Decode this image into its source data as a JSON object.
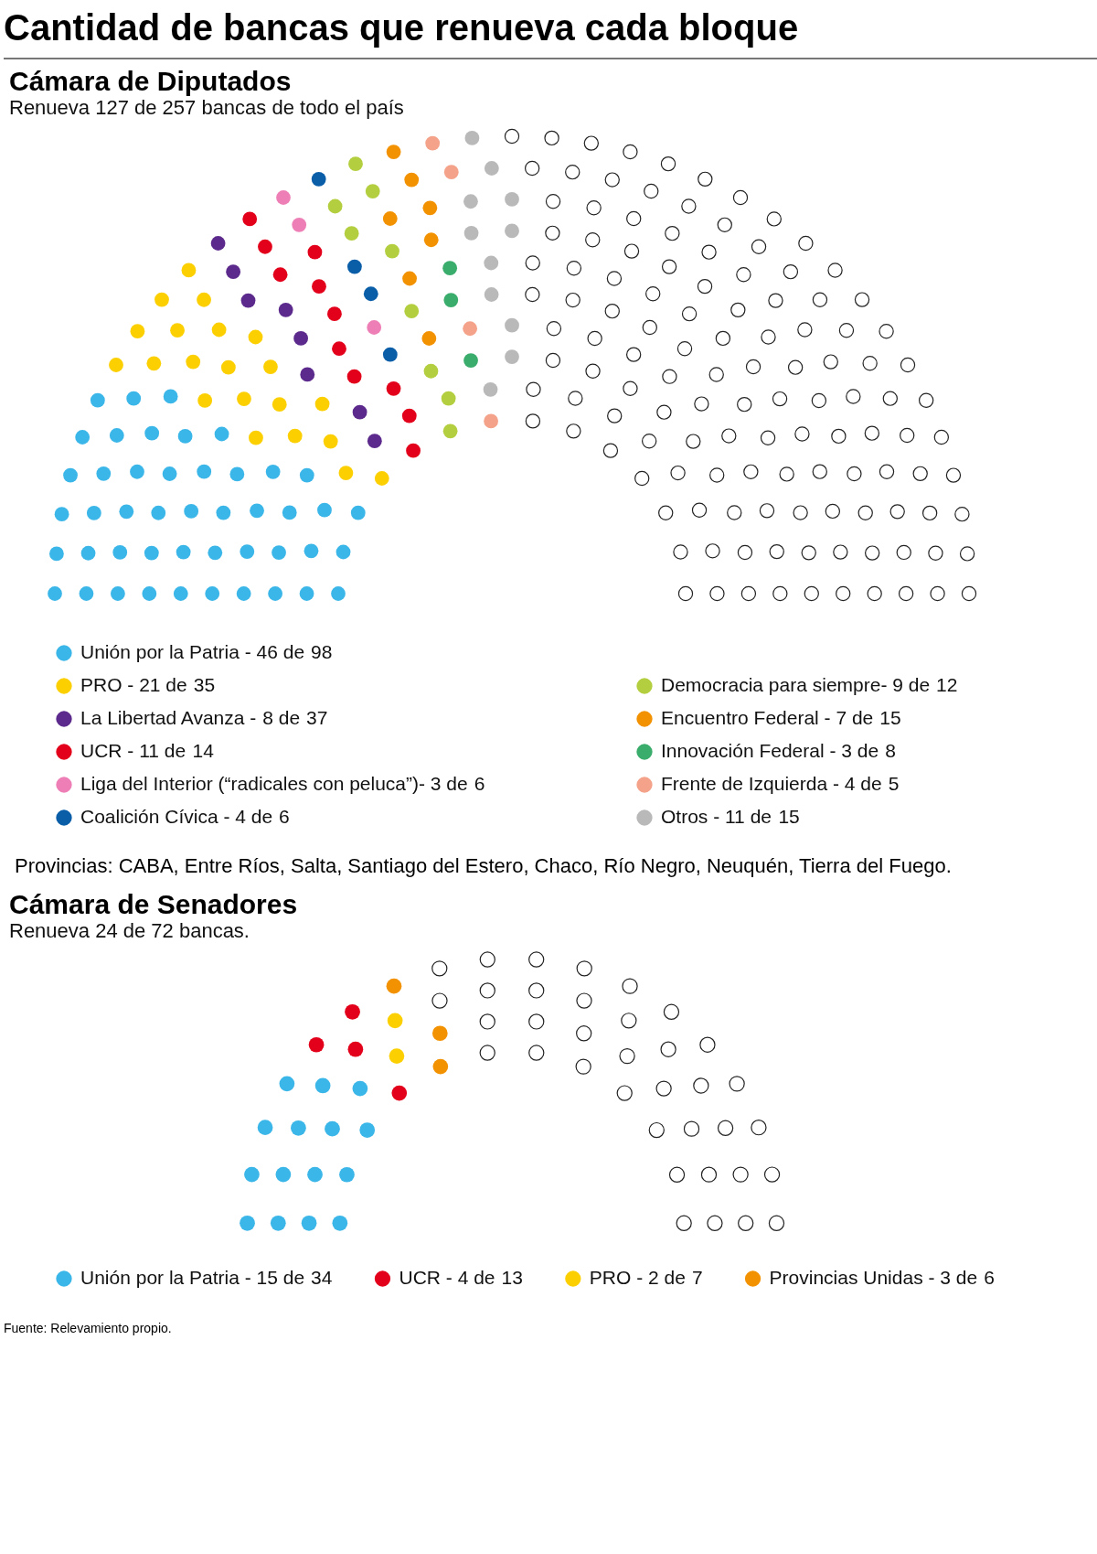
{
  "chart_data": [
    {
      "type": "other",
      "title": "Cámara de Diputados",
      "subtitle": "Renueva 127 de 257 bancas de todo el país",
      "annotations": [
        "Cantidad de bancas que renueva  cada bloque"
      ],
      "categories": [
        "Unión por la Patria -",
        "PRO -",
        "La Libertad Avanza -",
        "UCR -",
        "Liga del Interior (“radicales con peluca”)-",
        "Coalición Cívica -",
        "Democracia para siempre-",
        "Encuentro Federal -",
        "Innovación Federal -",
        "Frente de Izquierda -",
        "Otros -"
      ],
      "colors": [
        "#3bb6e8",
        "#fcd000",
        "#5c2a8c",
        "#e3001b",
        "#ee7fb6",
        "#0a5ea8",
        "#b3cf3f",
        "#f39200",
        "#3aac6b",
        "#f4a38a",
        "#b9b9b9"
      ],
      "values": [
        46,
        21,
        8,
        11,
        3,
        4,
        9,
        7,
        3,
        4,
        11
      ],
      "totals": [
        "98",
        "35",
        "37",
        "14",
        "6",
        "6",
        "12",
        "15",
        "8",
        "5",
        "15"
      ],
      "value_labels": [
        "46 de",
        "21 de",
        "8 de",
        "11 de",
        "3 de",
        "4 de",
        "9 de",
        "7 de",
        "3 de",
        "4 de",
        "11 de"
      ]
    },
    {
      "type": "other",
      "title": "Cámara de Senadores",
      "subtitle": "Renueva 24 de 72 bancas.",
      "annotations": [
        "Provincias: CABA, Entre Ríos, Salta, Santiago del Estero, Chaco, Río Negro, Neuquén, Tierra del Fuego.",
        "Fuente: Relevamiento propio."
      ],
      "categories": [
        "Unión por la Patria -",
        "UCR -",
        "PRO -",
        "Provincias Unidas -"
      ],
      "colors": [
        "#3bb6e8",
        "#e3001b",
        "#fcd000",
        "#f39200"
      ],
      "values": [
        15,
        4,
        2,
        3
      ],
      "totals": [
        "34",
        "13",
        "7",
        "6"
      ],
      "value_labels": [
        "15 de",
        "4 de",
        "2 de",
        "3 de"
      ]
    }
  ]
}
